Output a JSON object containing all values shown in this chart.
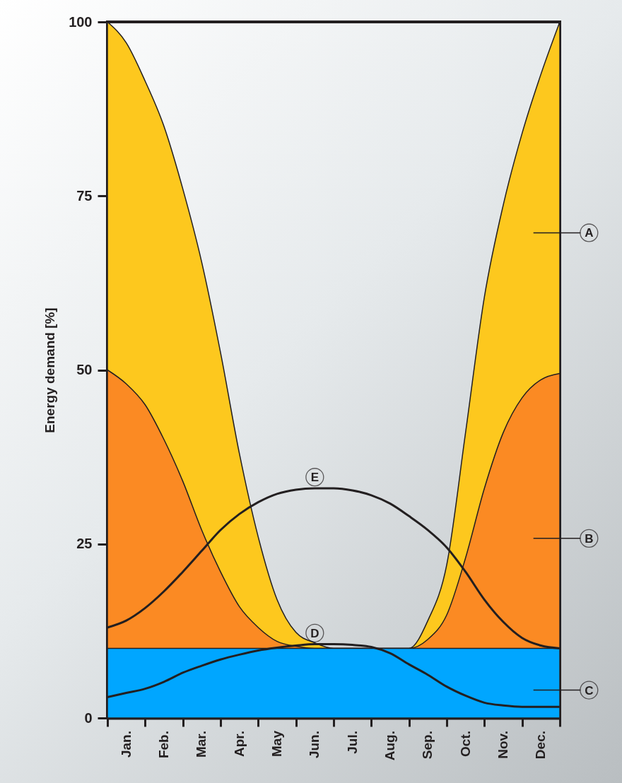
{
  "chart_data": {
    "type": "area",
    "ylabel": "Energy demand [%]",
    "categories": [
      null,
      "Jan.",
      null,
      "Feb.",
      null,
      "Mar.",
      null,
      "Apr.",
      null,
      "May",
      null,
      "Jun.",
      null,
      "Jul.",
      null,
      "Aug.",
      null,
      "Sep.",
      null,
      "Oct.",
      null,
      "Nov.",
      null,
      "Dec.",
      null
    ],
    "legend": "right",
    "ylim": [
      0,
      100
    ],
    "yticks": [
      0,
      25,
      50,
      75,
      100
    ],
    "series": [
      {
        "name": "A",
        "color": "#fdc81e",
        "values": [
          100,
          97,
          91.5,
          85,
          76,
          65.5,
          52.5,
          38,
          26,
          17,
          12.3,
          10.8,
          10,
          10,
          10,
          10,
          10,
          14,
          22,
          41,
          60.5,
          73.7,
          84,
          92.5,
          100
        ]
      },
      {
        "name": "B",
        "color": "#fb8a23",
        "values": [
          50,
          48,
          45,
          40,
          34,
          27,
          21,
          16,
          13,
          11,
          10.3,
          10,
          10,
          10,
          10,
          10,
          10,
          11.3,
          14.8,
          23,
          33,
          41,
          46,
          48.6,
          49.5
        ]
      },
      {
        "name": "C",
        "color": "#00a6ff",
        "values": [
          10,
          10,
          10,
          10,
          10,
          10,
          10,
          10,
          10,
          10,
          10,
          10,
          10,
          10,
          10,
          10,
          10,
          10,
          10,
          10,
          10,
          10,
          10,
          10,
          10
        ]
      },
      {
        "name": "D",
        "type": "line",
        "color": "#231f20",
        "values": [
          3,
          3.6,
          4.2,
          5.2,
          6.5,
          7.5,
          8.4,
          9.1,
          9.7,
          10.1,
          10.4,
          10.6,
          10.6,
          10.5,
          10.2,
          9.3,
          7.7,
          6.2,
          4.5,
          3.2,
          2.2,
          1.8,
          1.6,
          1.6,
          1.6
        ]
      },
      {
        "name": "E",
        "type": "line",
        "color": "#231f20",
        "values": [
          13,
          14,
          15.8,
          18.2,
          21,
          24,
          27,
          29.3,
          31,
          32.2,
          32.8,
          33,
          33,
          32.7,
          32,
          30.8,
          29,
          27,
          24.5,
          21,
          17,
          13.8,
          11.5,
          10.4,
          10
        ]
      }
    ]
  }
}
